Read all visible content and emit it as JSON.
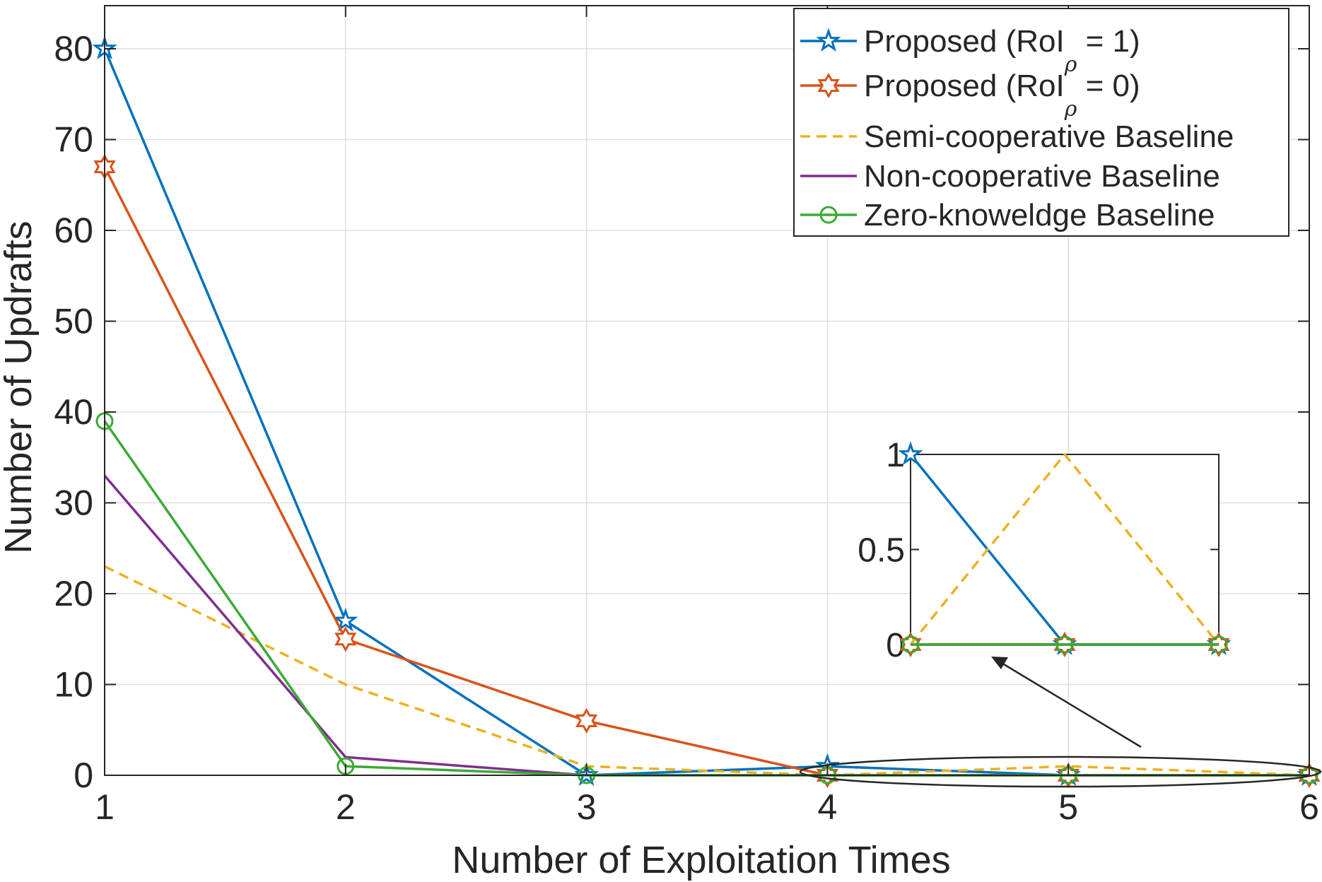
{
  "chart_data": {
    "type": "line",
    "title": "",
    "xlabel": "Number of Exploitation Times",
    "ylabel": "Number of Updrafts",
    "x": [
      1,
      2,
      3,
      4,
      5,
      6
    ],
    "xlim": [
      1,
      6
    ],
    "ylim": [
      0,
      80
    ],
    "xticks": [
      "1",
      "2",
      "3",
      "4",
      "5",
      "6"
    ],
    "yticks": [
      "0",
      "10",
      "20",
      "30",
      "40",
      "50",
      "60",
      "70",
      "80"
    ],
    "grid": true,
    "legend_position": "top-right",
    "series": [
      {
        "name": "Proposed (RoI = 1)",
        "legend_prefix": "Proposed (RoI",
        "legend_sub": "ρ",
        "legend_suffix": " = 1)",
        "color": "#0072BD",
        "marker": "star5",
        "dashed": false,
        "values": [
          80,
          17,
          0,
          1,
          0,
          0
        ]
      },
      {
        "name": "Proposed (RoI = 0)",
        "legend_prefix": "Proposed (RoI",
        "legend_sub": "ρ",
        "legend_suffix": " = 0)",
        "color": "#D95319",
        "marker": "star6",
        "dashed": false,
        "values": [
          67,
          15,
          6,
          0,
          0,
          0
        ]
      },
      {
        "name": "Semi-cooperative Baseline",
        "color": "#EDB120",
        "marker": "none",
        "dashed": true,
        "values": [
          23,
          10,
          1,
          0,
          1,
          0
        ]
      },
      {
        "name": "Non-cooperative Baseline",
        "color": "#7E2F8E",
        "marker": "none",
        "dashed": false,
        "values": [
          33,
          2,
          0,
          0,
          0,
          0
        ]
      },
      {
        "name": "Zero-knoweldge Baseline",
        "color": "#3BAA35",
        "marker": "circle",
        "dashed": false,
        "values": [
          39,
          1,
          0,
          0,
          0,
          0
        ]
      }
    ],
    "inset": {
      "x": [
        4,
        5,
        6
      ],
      "xlim": [
        4,
        6
      ],
      "ylim": [
        0,
        1
      ],
      "yticks": [
        "0",
        "0.5",
        "1"
      ]
    }
  }
}
